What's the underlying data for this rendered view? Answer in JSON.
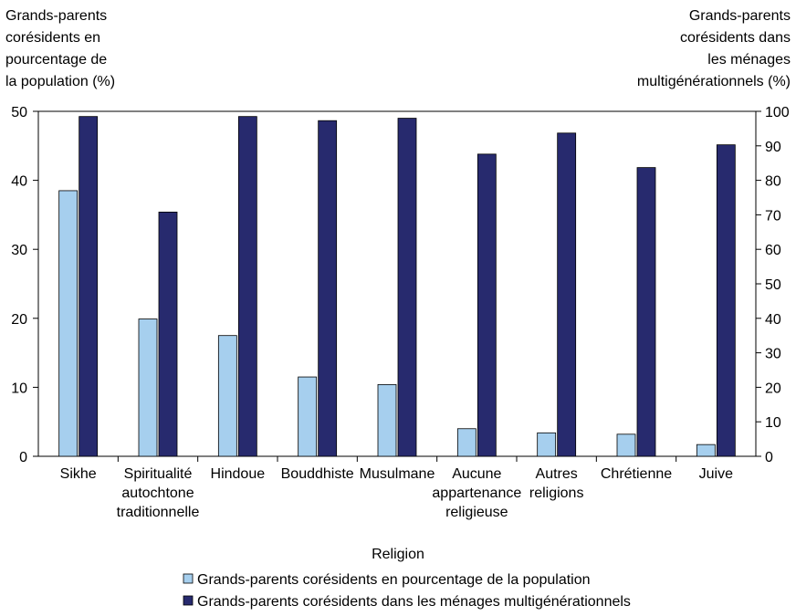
{
  "chart_data": {
    "type": "bar",
    "left_axis_title": [
      "Grands-parents",
      "corésidents en",
      "pourcentage de",
      "la population (%)"
    ],
    "right_axis_title": [
      "Grands-parents",
      "corésidents dans",
      "les ménages",
      "multigénérationnels (%)"
    ],
    "xlabel": "Religion",
    "ylim_left": [
      0,
      50
    ],
    "ylim_right": [
      0,
      100
    ],
    "left_ticks": [
      "0",
      "10",
      "20",
      "30",
      "40",
      "50"
    ],
    "right_ticks": [
      "0",
      "10",
      "20",
      "30",
      "40",
      "50",
      "60",
      "70",
      "80",
      "90",
      "100"
    ],
    "categories": [
      [
        "Sikhe"
      ],
      [
        "Spiritualité",
        "autochtone",
        "traditionnelle"
      ],
      [
        "Hindoue"
      ],
      [
        "Bouddhiste"
      ],
      [
        "Musulmane"
      ],
      [
        "Aucune",
        "appartenance",
        "religieuse"
      ],
      [
        "Autres",
        "religions"
      ],
      [
        "Chrétienne"
      ],
      [
        "Juive"
      ]
    ],
    "series": [
      {
        "name": "Grands-parents corésidents en pourcentage de la population",
        "axis": "left",
        "color": "#a6cfee",
        "values": [
          38.5,
          19.9,
          17.5,
          11.5,
          10.4,
          4.0,
          3.4,
          3.2,
          1.7
        ]
      },
      {
        "name": "Grands-parents corésidents dans les ménages multigénérationnels",
        "axis": "right",
        "color": "#272a6e",
        "values": [
          98.5,
          70.8,
          98.5,
          97.3,
          98.0,
          87.6,
          93.7,
          83.7,
          90.3
        ]
      }
    ],
    "grid": false,
    "legend_position": "bottom"
  }
}
